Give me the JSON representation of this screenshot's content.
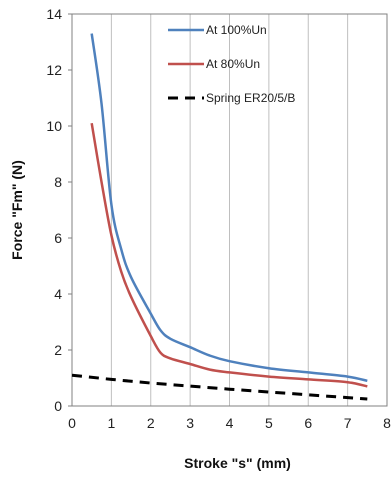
{
  "chart_data": {
    "type": "line",
    "title": "",
    "xlabel": "Stroke \"s\" (mm)",
    "ylabel": "Force  \"Fm\" (N)",
    "xlim": [
      0,
      8
    ],
    "ylim": [
      0,
      14
    ],
    "xticks": [
      0,
      1,
      2,
      3,
      4,
      5,
      6,
      7,
      8
    ],
    "yticks": [
      0,
      2,
      4,
      6,
      8,
      10,
      12,
      14
    ],
    "grid": "vertical",
    "legend_position": "top-right",
    "series": [
      {
        "name": "At 100%Un",
        "color": "#4f81bd",
        "style": "solid",
        "x": [
          0.5,
          0.75,
          1.0,
          1.25,
          1.5,
          2.0,
          2.25,
          2.5,
          3.0,
          3.5,
          4.0,
          5.0,
          6.0,
          7.0,
          7.5
        ],
        "y": [
          13.3,
          10.8,
          7.2,
          5.6,
          4.6,
          3.3,
          2.7,
          2.4,
          2.1,
          1.8,
          1.6,
          1.35,
          1.2,
          1.05,
          0.9
        ]
      },
      {
        "name": "At 80%Un",
        "color": "#c0504d",
        "style": "solid",
        "x": [
          0.5,
          0.75,
          1.0,
          1.25,
          1.5,
          2.0,
          2.25,
          2.5,
          3.0,
          3.5,
          4.0,
          5.0,
          6.0,
          7.0,
          7.5
        ],
        "y": [
          10.1,
          8.0,
          6.1,
          4.8,
          3.9,
          2.5,
          1.9,
          1.7,
          1.5,
          1.3,
          1.2,
          1.05,
          0.95,
          0.85,
          0.7
        ]
      },
      {
        "name": "Spring ER20/5/B",
        "color": "#000000",
        "style": "dashed",
        "x": [
          0,
          1,
          2,
          3,
          4,
          5,
          6,
          7,
          7.5
        ],
        "y": [
          1.1,
          0.95,
          0.82,
          0.71,
          0.6,
          0.5,
          0.4,
          0.3,
          0.25
        ]
      }
    ]
  }
}
